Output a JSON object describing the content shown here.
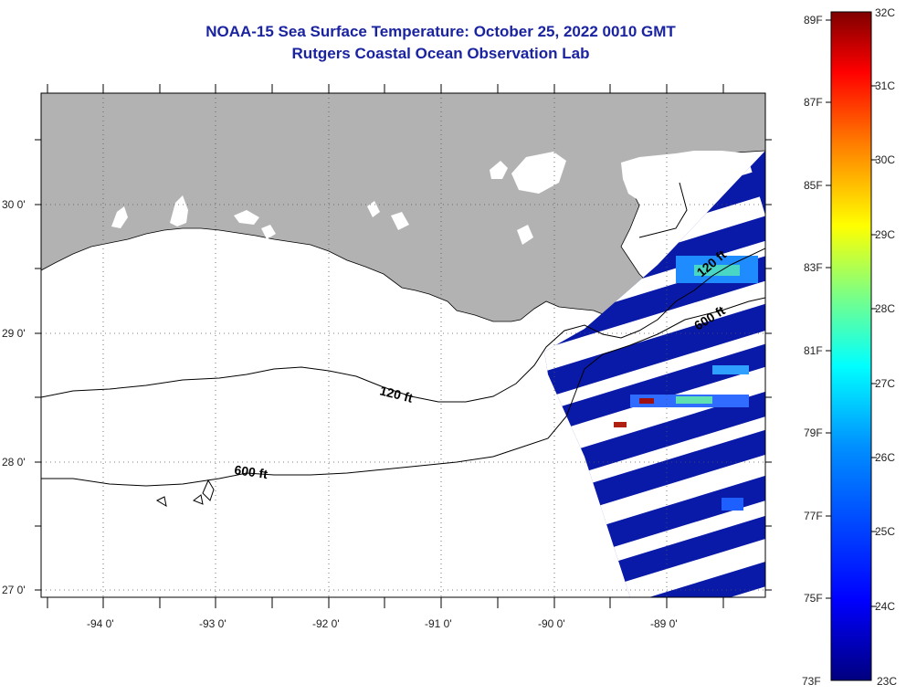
{
  "title": {
    "line1": "NOAA-15 Sea Surface Temperature:  October 25, 2022 0010 GMT",
    "line2": "Rutgers Coastal Ocean Observation Lab"
  },
  "map": {
    "lat_labels": [
      "30 0'",
      "29 0'",
      "28 0'",
      "27 0'"
    ],
    "lon_labels": [
      "-94 0'",
      "-93 0'",
      "-92 0'",
      "-91 0'",
      "-90 0'",
      "-89 0'"
    ],
    "isobath_labels": [
      "120 ft",
      "600 ft",
      "120 ft",
      "600 ft"
    ],
    "land_color": "#b2b2b2",
    "cloud_color": "#ffffff"
  },
  "colorbar": {
    "fahrenheit_labels": [
      "89F",
      "87F",
      "85F",
      "83F",
      "81F",
      "79F",
      "77F",
      "75F",
      "73F"
    ],
    "celsius_labels": [
      "32C",
      "31C",
      "30C",
      "29C",
      "28C",
      "27C",
      "26C",
      "25C",
      "24C",
      "23C"
    ],
    "colors": [
      "#7f0000",
      "#ff0000",
      "#ff8000",
      "#ffff00",
      "#80ff80",
      "#00ffff",
      "#0080ff",
      "#0000ff",
      "#00007f"
    ]
  }
}
